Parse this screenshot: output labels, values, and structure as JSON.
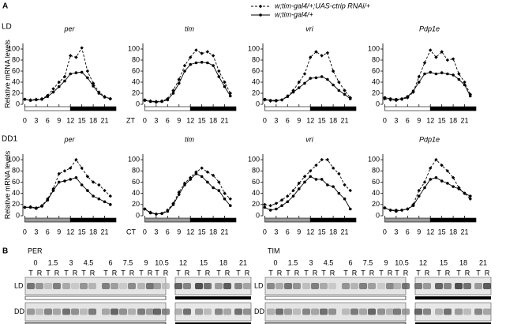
{
  "panel_labels": [
    "A",
    "B"
  ],
  "legend": [
    {
      "name": "w;tim-gal4/+;UAS-ctrip RNAi/+",
      "dashed": true,
      "marker": "diamond",
      "color": "#000000"
    },
    {
      "name": "w;tim-gal4/+",
      "dashed": false,
      "marker": "circle",
      "color": "#000000"
    }
  ],
  "row_labels": [
    "LD",
    "DD1"
  ],
  "chart_data": [
    {
      "type": "line",
      "title": "per",
      "ylabel": "Relative mRNA levels",
      "xlabel": "ZT",
      "x": [
        0,
        1.5,
        3,
        4.5,
        6,
        7.5,
        9,
        10.5,
        12,
        13.5,
        15,
        16.5,
        18,
        19.5,
        21,
        22.5
      ],
      "xlim": [
        -0.5,
        24
      ],
      "xticks": [
        0,
        3,
        6,
        9,
        12,
        15,
        18,
        21
      ],
      "ylim": [
        0,
        110
      ],
      "yticks": [
        0,
        20,
        40,
        60,
        80,
        100
      ],
      "phase_bar": [
        {
          "from": 0,
          "to": 12,
          "color": "#ffffff"
        },
        {
          "from": 12,
          "to": 24,
          "color": "#000000"
        }
      ],
      "series": [
        {
          "color": "#000000",
          "dashed": true,
          "values": [
            9,
            8,
            9,
            10,
            16,
            28,
            40,
            50,
            88,
            85,
            102,
            60,
            38,
            22,
            14,
            10
          ]
        },
        {
          "color": "#000000",
          "dashed": false,
          "values": [
            9,
            7,
            8,
            9,
            14,
            22,
            32,
            42,
            55,
            57,
            58,
            48,
            33,
            20,
            13,
            10
          ]
        }
      ]
    },
    {
      "type": "line",
      "title": "tim",
      "x": [
        0,
        1.5,
        3,
        4.5,
        6,
        7.5,
        9,
        10.5,
        12,
        13.5,
        15,
        16.5,
        18,
        19.5,
        21,
        22.5
      ],
      "xlim": [
        -0.5,
        24
      ],
      "xticks": [
        0,
        3,
        6,
        9,
        12,
        15,
        18,
        21
      ],
      "ylim": [
        0,
        110
      ],
      "yticks": [
        0,
        20,
        40,
        60,
        80,
        100
      ],
      "phase_bar": [
        {
          "from": 0,
          "to": 12,
          "color": "#ffffff"
        },
        {
          "from": 12,
          "to": 24,
          "color": "#000000"
        }
      ],
      "series": [
        {
          "color": "#000000",
          "dashed": true,
          "values": [
            8,
            6,
            5,
            6,
            10,
            25,
            45,
            70,
            85,
            98,
            92,
            95,
            88,
            60,
            40,
            20
          ]
        },
        {
          "color": "#000000",
          "dashed": false,
          "values": [
            7,
            5,
            4,
            5,
            8,
            20,
            38,
            60,
            72,
            75,
            76,
            75,
            70,
            50,
            32,
            15
          ]
        }
      ]
    },
    {
      "type": "line",
      "title": "vri",
      "x": [
        0,
        1.5,
        3,
        4.5,
        6,
        7.5,
        9,
        10.5,
        12,
        13.5,
        15,
        16.5,
        18,
        19.5,
        21,
        22.5
      ],
      "xlim": [
        -0.5,
        24
      ],
      "xticks": [
        0,
        3,
        6,
        9,
        12,
        15,
        18,
        21
      ],
      "ylim": [
        0,
        110
      ],
      "yticks": [
        0,
        20,
        40,
        60,
        80,
        100
      ],
      "phase_bar": [
        {
          "from": 0,
          "to": 12,
          "color": "#ffffff"
        },
        {
          "from": 12,
          "to": 24,
          "color": "#000000"
        }
      ],
      "series": [
        {
          "color": "#000000",
          "dashed": true,
          "values": [
            8,
            6,
            6,
            8,
            15,
            25,
            40,
            55,
            85,
            95,
            88,
            93,
            60,
            40,
            25,
            12
          ]
        },
        {
          "color": "#000000",
          "dashed": false,
          "values": [
            9,
            7,
            7,
            8,
            14,
            22,
            30,
            38,
            47,
            48,
            50,
            45,
            35,
            25,
            18,
            10
          ]
        }
      ]
    },
    {
      "type": "line",
      "title": "Pdp1e",
      "x": [
        0,
        1.5,
        3,
        4.5,
        6,
        7.5,
        9,
        10.5,
        12,
        13.5,
        15,
        16.5,
        18,
        19.5,
        21,
        22.5
      ],
      "xlim": [
        -0.5,
        24
      ],
      "xticks": [
        0,
        3,
        6,
        9,
        12,
        15,
        18,
        21
      ],
      "ylim": [
        0,
        110
      ],
      "yticks": [
        0,
        20,
        40,
        60,
        80,
        100
      ],
      "phase_bar": [
        {
          "from": 0,
          "to": 12,
          "color": "#ffffff"
        },
        {
          "from": 12,
          "to": 24,
          "color": "#000000"
        }
      ],
      "series": [
        {
          "color": "#000000",
          "dashed": true,
          "values": [
            10,
            8,
            7,
            9,
            12,
            22,
            50,
            75,
            98,
            85,
            95,
            80,
            82,
            55,
            40,
            18
          ]
        },
        {
          "color": "#000000",
          "dashed": false,
          "values": [
            12,
            10,
            9,
            10,
            14,
            24,
            40,
            55,
            58,
            55,
            57,
            55,
            53,
            45,
            35,
            15
          ]
        }
      ]
    },
    {
      "type": "line",
      "title": "per",
      "ylabel": "Relative mRNA levels",
      "xlabel": "CT",
      "x": [
        0,
        1.5,
        3,
        4.5,
        6,
        7.5,
        9,
        10.5,
        12,
        13.5,
        15,
        16.5,
        18,
        19.5,
        21,
        22.5
      ],
      "xlim": [
        -0.5,
        24
      ],
      "xticks": [
        0,
        3,
        6,
        9,
        12,
        15,
        18,
        21
      ],
      "ylim": [
        0,
        110
      ],
      "yticks": [
        0,
        20,
        40,
        60,
        80,
        100
      ],
      "phase_bar": [
        {
          "from": 0,
          "to": 12,
          "color": "#999999"
        },
        {
          "from": 12,
          "to": 24,
          "color": "#000000"
        }
      ],
      "series": [
        {
          "color": "#000000",
          "dashed": true,
          "values": [
            15,
            16,
            14,
            18,
            30,
            48,
            75,
            80,
            85,
            100,
            85,
            70,
            60,
            55,
            45,
            35
          ]
        },
        {
          "color": "#000000",
          "dashed": false,
          "values": [
            15,
            15,
            13,
            17,
            28,
            45,
            60,
            62,
            65,
            68,
            55,
            45,
            35,
            30,
            25,
            20
          ]
        }
      ]
    },
    {
      "type": "line",
      "title": "tim",
      "x": [
        0,
        1.5,
        3,
        4.5,
        6,
        7.5,
        9,
        10.5,
        12,
        13.5,
        15,
        16.5,
        18,
        19.5,
        21,
        22.5
      ],
      "xlim": [
        -0.5,
        24
      ],
      "xticks": [
        0,
        3,
        6,
        9,
        12,
        15,
        18,
        21
      ],
      "ylim": [
        0,
        110
      ],
      "yticks": [
        0,
        20,
        40,
        60,
        80,
        100
      ],
      "phase_bar": [
        {
          "from": 0,
          "to": 12,
          "color": "#999999"
        },
        {
          "from": 12,
          "to": 24,
          "color": "#000000"
        }
      ],
      "series": [
        {
          "color": "#000000",
          "dashed": true,
          "values": [
            12,
            6,
            3,
            4,
            10,
            22,
            42,
            58,
            68,
            78,
            85,
            78,
            72,
            60,
            40,
            30
          ]
        },
        {
          "color": "#000000",
          "dashed": false,
          "values": [
            12,
            5,
            3,
            4,
            8,
            20,
            38,
            55,
            65,
            75,
            70,
            60,
            50,
            45,
            30,
            18
          ]
        }
      ]
    },
    {
      "type": "line",
      "title": "vri",
      "x": [
        0,
        1.5,
        3,
        4.5,
        6,
        7.5,
        9,
        10.5,
        12,
        13.5,
        15,
        16.5,
        18,
        19.5,
        21,
        22.5
      ],
      "xlim": [
        -0.5,
        24
      ],
      "xticks": [
        0,
        3,
        6,
        9,
        12,
        15,
        18,
        21
      ],
      "ylim": [
        0,
        110
      ],
      "yticks": [
        0,
        20,
        40,
        60,
        80,
        100
      ],
      "phase_bar": [
        {
          "from": 0,
          "to": 12,
          "color": "#999999"
        },
        {
          "from": 12,
          "to": 24,
          "color": "#000000"
        }
      ],
      "series": [
        {
          "color": "#000000",
          "dashed": true,
          "values": [
            20,
            18,
            22,
            28,
            35,
            45,
            58,
            70,
            80,
            90,
            100,
            100,
            85,
            75,
            55,
            45
          ]
        },
        {
          "color": "#000000",
          "dashed": false,
          "values": [
            15,
            10,
            12,
            18,
            25,
            35,
            48,
            60,
            70,
            65,
            65,
            55,
            52,
            40,
            30,
            12
          ]
        }
      ]
    },
    {
      "type": "line",
      "title": "Pdp1e",
      "x": [
        0,
        1.5,
        3,
        4.5,
        6,
        7.5,
        9,
        10.5,
        12,
        13.5,
        15,
        16.5,
        18,
        19.5,
        21,
        22.5
      ],
      "xlim": [
        -0.5,
        24
      ],
      "xticks": [
        0,
        3,
        6,
        9,
        12,
        15,
        18,
        21
      ],
      "ylim": [
        0,
        110
      ],
      "yticks": [
        0,
        20,
        40,
        60,
        80,
        100
      ],
      "phase_bar": [
        {
          "from": 0,
          "to": 12,
          "color": "#999999"
        },
        {
          "from": 12,
          "to": 24,
          "color": "#000000"
        }
      ],
      "series": [
        {
          "color": "#000000",
          "dashed": true,
          "values": [
            14,
            10,
            10,
            10,
            12,
            20,
            45,
            60,
            85,
            100,
            90,
            80,
            68,
            50,
            40,
            30
          ]
        },
        {
          "color": "#000000",
          "dashed": false,
          "values": [
            14,
            10,
            8,
            10,
            12,
            18,
            35,
            50,
            65,
            68,
            62,
            58,
            52,
            48,
            40,
            35
          ]
        }
      ]
    }
  ],
  "blots": [
    {
      "title": "PER",
      "times": [
        "0",
        "1.5",
        "3",
        "4.5",
        "6",
        "7.5",
        "9",
        "10.5",
        "12",
        "15",
        "18",
        "21"
      ],
      "lane_labels": [
        "T",
        "R"
      ],
      "rows": [
        "LD",
        "DD"
      ]
    },
    {
      "title": "TIM",
      "times": [
        "0",
        "1.5",
        "3",
        "4.5",
        "6",
        "7.5",
        "9",
        "10.5",
        "12",
        "15",
        "18",
        "21"
      ],
      "lane_labels": [
        "T",
        "R"
      ],
      "rows": [
        "LD",
        "DD"
      ]
    }
  ]
}
